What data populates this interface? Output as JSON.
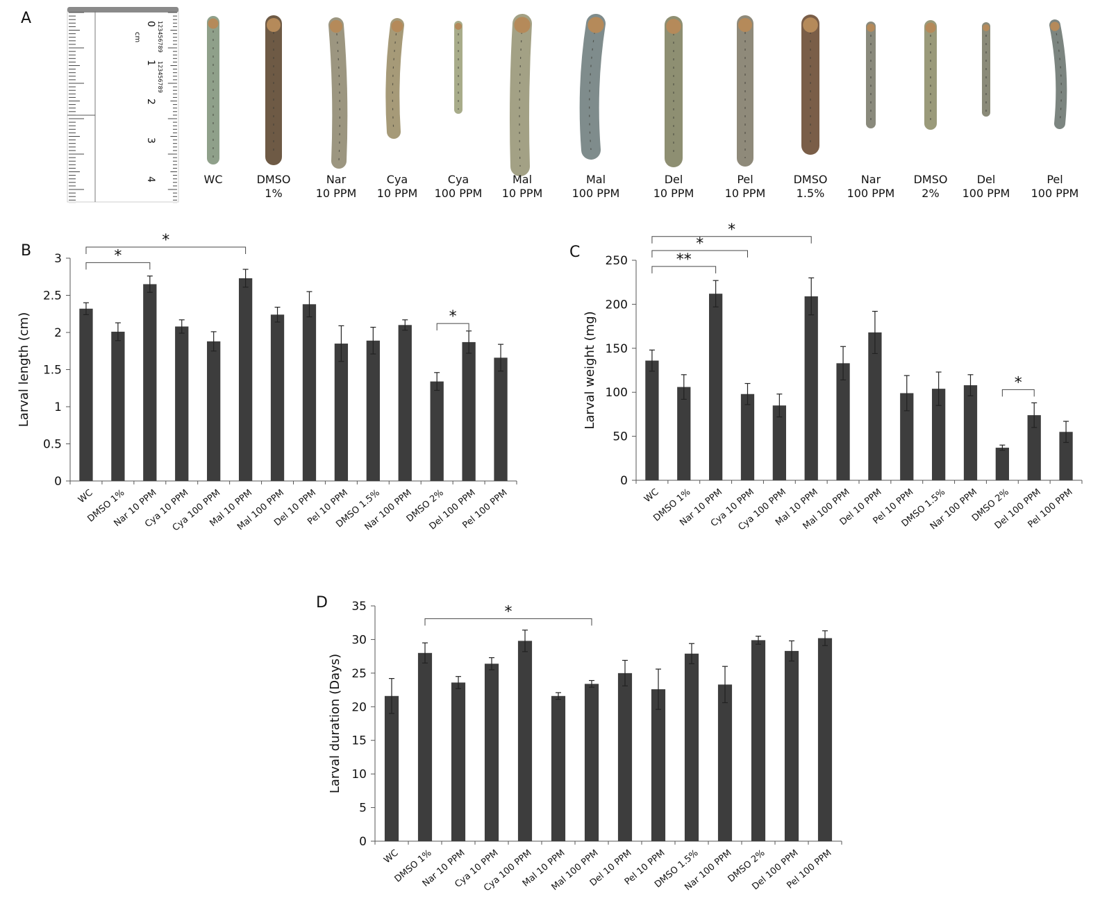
{
  "panel_a": {
    "letter": "A",
    "ruler_unit": "cm",
    "ruler_numbers": [
      "0",
      "1",
      "2",
      "3",
      "4"
    ],
    "ruler_fine_labels": [
      "123456789",
      "123456789"
    ],
    "specimens": [
      {
        "line1": "WC",
        "line2": "",
        "color": "#8fa08a"
      },
      {
        "line1": "DMSO",
        "line2": "1%",
        "color": "#6e5a45"
      },
      {
        "line1": "Nar",
        "line2": "10 PPM",
        "color": "#9c9680"
      },
      {
        "line1": "Cya",
        "line2": "10 PPM",
        "color": "#a69a78"
      },
      {
        "line1": "Cya",
        "line2": "100 PPM",
        "color": "#a8ac8a"
      },
      {
        "line1": "Mal",
        "line2": "10 PPM",
        "color": "#a3a185"
      },
      {
        "line1": "Mal",
        "line2": "100 PPM",
        "color": "#7f8c8c"
      },
      {
        "line1": "Del",
        "line2": "10 PPM",
        "color": "#8e8f72"
      },
      {
        "line1": "Pel",
        "line2": "10 PPM",
        "color": "#8f8a7a"
      },
      {
        "line1": "DMSO",
        "line2": "1.5%",
        "color": "#7a5e48"
      },
      {
        "line1": "Nar",
        "line2": "100 PPM",
        "color": "#8a8a7c"
      },
      {
        "line1": "DMSO",
        "line2": "2%",
        "color": "#9a9a7a"
      },
      {
        "line1": "Del",
        "line2": "100 PPM",
        "color": "#8a8a78"
      },
      {
        "line1": "Pel",
        "line2": "100 PPM",
        "color": "#7c8580"
      }
    ]
  },
  "chart_data": [
    {
      "panel": "B",
      "type": "bar",
      "title": "",
      "xlabel": "",
      "ylabel": "Larval length (cm)",
      "ylim": [
        0,
        3
      ],
      "yticks": [
        {
          "v": 0,
          "label": "0"
        },
        {
          "v": 0.5,
          "label": "0.5"
        },
        {
          "v": 1,
          "label": "1"
        },
        {
          "v": 1.5,
          "label": "1.5"
        },
        {
          "v": 2,
          "label": "2"
        },
        {
          "v": 2.5,
          "label": "2.5"
        },
        {
          "v": 3,
          "label": "3"
        }
      ],
      "categories": [
        "WC",
        "DMSO 1%",
        "Nar 10 PPM",
        "Cya 10 PPM",
        "Cya 100 PPM",
        "Mal 10 PPM",
        "Mal 100 PPM",
        "Del 10 PPM",
        "Pel 10 PPM",
        "DMSO 1.5%",
        "Nar 100 PPM",
        "DMSO 2%",
        "Del 100 PPM",
        "Pel 100 PPM"
      ],
      "values": [
        2.32,
        2.01,
        2.65,
        2.08,
        1.88,
        2.73,
        2.24,
        2.38,
        1.85,
        1.89,
        2.1,
        1.34,
        1.87,
        1.66
      ],
      "errors": [
        0.08,
        0.12,
        0.11,
        0.09,
        0.13,
        0.12,
        0.1,
        0.17,
        0.24,
        0.18,
        0.07,
        0.12,
        0.15,
        0.18
      ],
      "significance": [
        {
          "from": 0,
          "to": 2,
          "label": "*",
          "y": 2.94
        },
        {
          "from": 0,
          "to": 5,
          "label": "*",
          "y": 3.15
        },
        {
          "from": 11,
          "to": 12,
          "label": "*",
          "y": 2.12
        }
      ]
    },
    {
      "panel": "C",
      "type": "bar",
      "title": "",
      "xlabel": "",
      "ylabel": "Larval weight (mg)",
      "ylim": [
        0,
        250
      ],
      "yticks": [
        {
          "v": 0,
          "label": "0"
        },
        {
          "v": 50,
          "label": "50"
        },
        {
          "v": 100,
          "label": "100"
        },
        {
          "v": 150,
          "label": "150"
        },
        {
          "v": 200,
          "label": "200"
        },
        {
          "v": 250,
          "label": "250"
        }
      ],
      "categories": [
        "WC",
        "DMSO 1%",
        "Nar 10 PPM",
        "Cya 10 PPM",
        "Cya 100 PPM",
        "Mal 10 PPM",
        "Mal 100 PPM",
        "Del 10 PPM",
        "Pel 10 PPM",
        "DMSO 1.5%",
        "Nar 100 PPM",
        "DMSO 2%",
        "Del 100 PPM",
        "Pel 100 PPM"
      ],
      "values": [
        136,
        106,
        212,
        98,
        85,
        209,
        133,
        168,
        99,
        104,
        108,
        37,
        74,
        55
      ],
      "errors": [
        12,
        14,
        15,
        12,
        13,
        21,
        19,
        24,
        20,
        19,
        12,
        3,
        14,
        12
      ],
      "significance": [
        {
          "from": 0,
          "to": 2,
          "label": "**",
          "y": 243
        },
        {
          "from": 0,
          "to": 3,
          "label": "*",
          "y": 261
        },
        {
          "from": 0,
          "to": 5,
          "label": "*",
          "y": 277
        },
        {
          "from": 11,
          "to": 12,
          "label": "*",
          "y": 103
        }
      ]
    },
    {
      "panel": "D",
      "type": "bar",
      "title": "",
      "xlabel": "",
      "ylabel": "Larval duration (Days)",
      "ylim": [
        0,
        35
      ],
      "yticks": [
        {
          "v": 0,
          "label": "0"
        },
        {
          "v": 5,
          "label": "5"
        },
        {
          "v": 10,
          "label": "10"
        },
        {
          "v": 15,
          "label": "15"
        },
        {
          "v": 20,
          "label": "20"
        },
        {
          "v": 25,
          "label": "25"
        },
        {
          "v": 30,
          "label": "30"
        },
        {
          "v": 35,
          "label": "35"
        }
      ],
      "categories": [
        "WC",
        "DMSO 1%",
        "Nar 10 PPM",
        "Cya 10 PPM",
        "Cya 100 PPM",
        "Mal 10 PPM",
        "Mal 100 PPM",
        "Del 10 PPM",
        "Pel 10 PPM",
        "DMSO 1.5%",
        "Nar 100 PPM",
        "DMSO 2%",
        "Del 100 PPM",
        "Pel 100 PPM"
      ],
      "values": [
        21.6,
        28.0,
        23.6,
        26.4,
        29.8,
        21.6,
        23.4,
        25.0,
        22.6,
        27.9,
        23.3,
        29.9,
        28.3,
        30.2
      ],
      "errors": [
        2.6,
        1.5,
        0.9,
        0.9,
        1.6,
        0.5,
        0.5,
        1.9,
        3.0,
        1.5,
        2.7,
        0.6,
        1.5,
        1.1
      ],
      "significance": [
        {
          "from": 1,
          "to": 6,
          "label": "*",
          "y": 33.1
        }
      ]
    }
  ]
}
